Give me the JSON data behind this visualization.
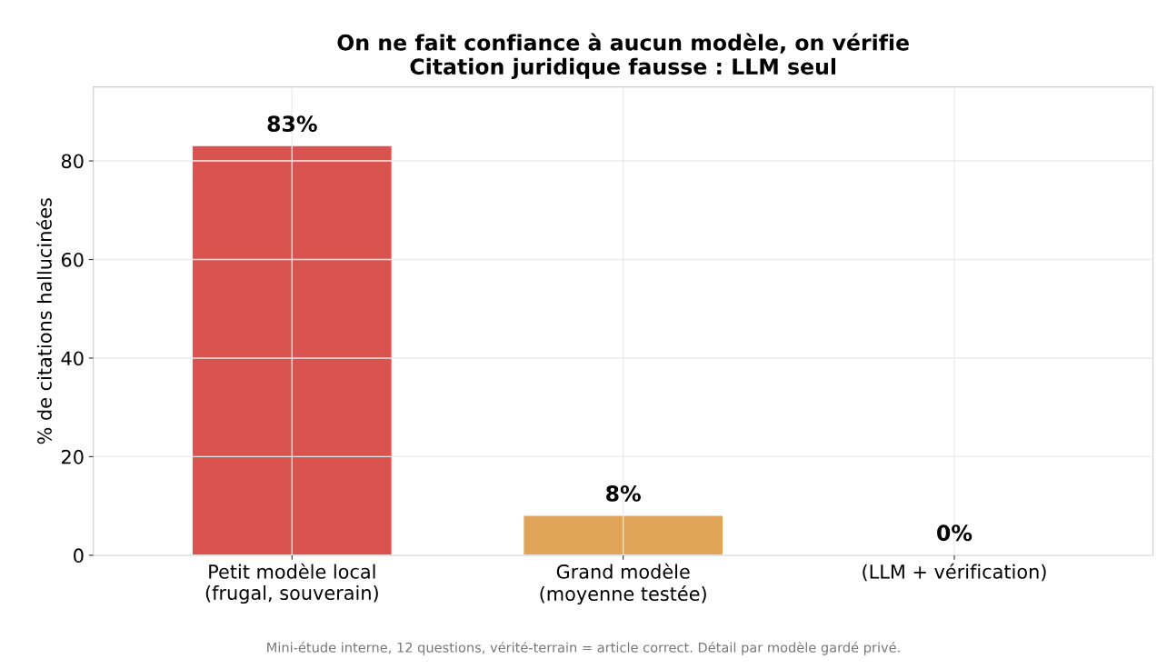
{
  "chart_data": {
    "type": "bar",
    "title": "On ne fait confiance à aucun modèle, on vérifie\nCitation juridique fausse : LLM seul",
    "ylabel": "% de citations hallucinées",
    "categories": [
      "Petit modèle local\n(frugal, souverain)",
      "Grand modèle\n(moyenne testée)",
      "(LLM + vérification)"
    ],
    "values": [
      83,
      8,
      0
    ],
    "colors": [
      "#d9534f",
      "#e0a458",
      "#5cb85c"
    ],
    "value_labels": [
      "83%",
      "8%",
      "0%"
    ],
    "ylim": [
      0,
      95
    ],
    "yticks": [
      0,
      20,
      40,
      60,
      80
    ],
    "grid": true,
    "legend": false,
    "annotations": [
      "Mini-étude interne, 12 questions, vérité-terrain = article correct. Détail par modèle gardé privé."
    ]
  }
}
